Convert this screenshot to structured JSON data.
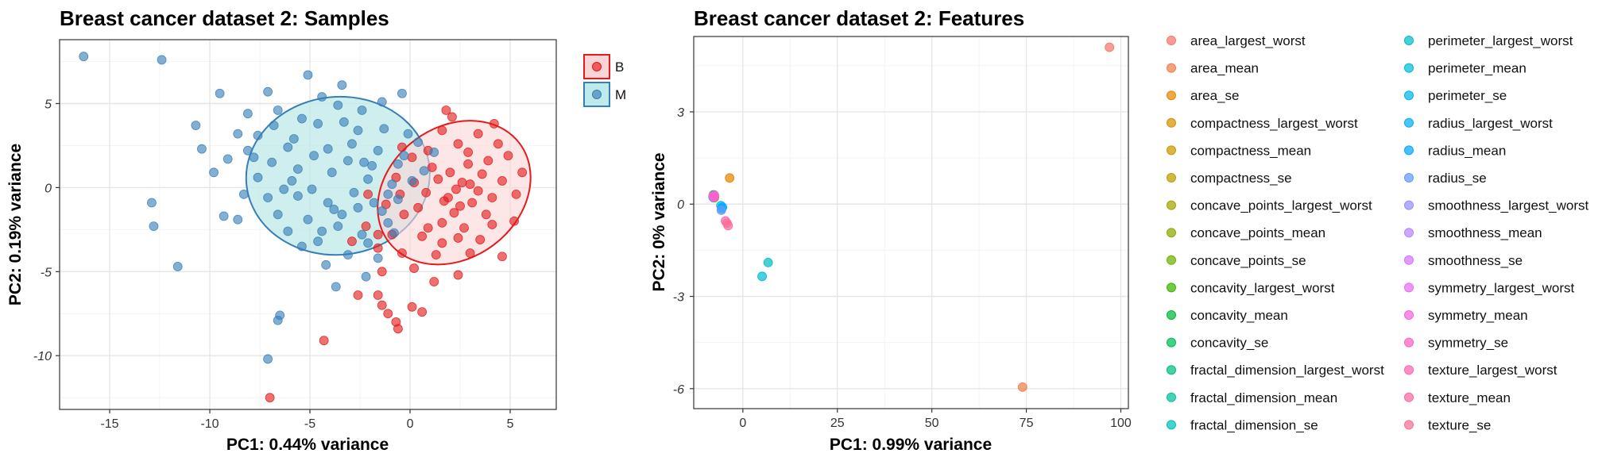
{
  "chart_data": [
    {
      "type": "scatter",
      "title": "Breast cancer dataset 2: Samples",
      "xlabel": "PC1: 0.44% variance",
      "ylabel": "PC2: 0.19% variance",
      "xlim": [
        -17.5,
        7.3
      ],
      "ylim": [
        -13.2,
        8.8
      ],
      "x_ticks": [
        -15,
        -10,
        -5,
        0,
        5
      ],
      "y_ticks": [
        -10,
        -5,
        0,
        5
      ],
      "grid": true,
      "legend_position": "right",
      "series": [
        {
          "name": "B",
          "color": "#e41a1c",
          "ellipse": {
            "cx": 2.2,
            "cy": -0.3,
            "rx": 6.6,
            "ry": 3.9,
            "angle_deg": 37
          },
          "points": [
            [
              1.9,
              -0.6
            ],
            [
              2.6,
              0.3
            ],
            [
              3.1,
              -0.9
            ],
            [
              1.4,
              0.5
            ],
            [
              2.2,
              -1.5
            ],
            [
              3.6,
              0.8
            ],
            [
              0.8,
              -0.3
            ],
            [
              2.9,
              1.4
            ],
            [
              1.6,
              -2.1
            ],
            [
              3.4,
              -0.2
            ],
            [
              2.0,
              0.9
            ],
            [
              4.1,
              -0.6
            ],
            [
              0.4,
              -1.2
            ],
            [
              2.7,
              -2.4
            ],
            [
              1.1,
              1.2
            ],
            [
              3.9,
              1.6
            ],
            [
              2.3,
              -0.1
            ],
            [
              1.7,
              -0.8
            ],
            [
              3.0,
              0.2
            ],
            [
              2.5,
              -1.1
            ],
            [
              0.9,
              -2.4
            ],
            [
              -0.3,
              -1.6
            ],
            [
              -0.9,
              -2.8
            ],
            [
              -1.2,
              -1.0
            ],
            [
              -1.6,
              -3.6
            ],
            [
              -0.7,
              0.6
            ],
            [
              0.2,
              0.3
            ],
            [
              4.6,
              0.4
            ],
            [
              4.9,
              1.9
            ],
            [
              5.3,
              -0.4
            ],
            [
              4.4,
              2.6
            ],
            [
              3.4,
              3.2
            ],
            [
              2.4,
              2.6
            ],
            [
              1.6,
              3.4
            ],
            [
              0.9,
              2.2
            ],
            [
              5.6,
              0.9
            ],
            [
              4.1,
              -2.2
            ],
            [
              3.5,
              -3.1
            ],
            [
              1.3,
              -4.0
            ],
            [
              0.2,
              -4.8
            ],
            [
              -0.4,
              -3.9
            ],
            [
              -1.4,
              -5.0
            ],
            [
              4.6,
              -4.1
            ],
            [
              2.4,
              -5.2
            ],
            [
              1.2,
              -5.6
            ],
            [
              1.6,
              -3.3
            ],
            [
              3.0,
              -3.9
            ],
            [
              -2.2,
              -2.3
            ],
            [
              -2.9,
              -3.2
            ],
            [
              -2.1,
              -0.4
            ],
            [
              -2.6,
              -6.4
            ],
            [
              -1.6,
              -6.4
            ],
            [
              -1.4,
              -7.0
            ],
            [
              -1.1,
              -7.5
            ],
            [
              -0.7,
              -8.0
            ],
            [
              -0.6,
              -8.4
            ],
            [
              0.1,
              -7.1
            ],
            [
              0.6,
              -7.4
            ],
            [
              -4.3,
              -9.1
            ],
            [
              -7.0,
              -12.5
            ],
            [
              5.2,
              -2.0
            ],
            [
              2.1,
              4.2
            ],
            [
              -0.4,
              2.4
            ],
            [
              4.2,
              3.8
            ],
            [
              1.8,
              4.6
            ],
            [
              0.1,
              1.8
            ],
            [
              -1.6,
              -2.8
            ],
            [
              0.6,
              -2.9
            ],
            [
              2.9,
              2.1
            ],
            [
              3.8,
              -1.6
            ],
            [
              2.4,
              -3.0
            ],
            [
              -0.5,
              -0.4
            ]
          ]
        },
        {
          "name": "M",
          "color": "#377eb8",
          "ellipse": {
            "cx": -3.6,
            "cy": 0.7,
            "rx": 7.4,
            "ry": 4.7,
            "angle_deg": 5
          },
          "points": [
            [
              -16.3,
              7.8
            ],
            [
              -12.4,
              7.6
            ],
            [
              -10.7,
              3.7
            ],
            [
              -10.4,
              2.3
            ],
            [
              -9.5,
              5.6
            ],
            [
              -9.1,
              1.7
            ],
            [
              -8.6,
              3.2
            ],
            [
              -8.1,
              2.2
            ],
            [
              -7.1,
              5.7
            ],
            [
              -6.6,
              4.6
            ],
            [
              -6.1,
              2.4
            ],
            [
              -5.6,
              1.1
            ],
            [
              -5.1,
              6.7
            ],
            [
              -4.6,
              3.8
            ],
            [
              -4.1,
              2.3
            ],
            [
              -3.6,
              4.9
            ],
            [
              -3.1,
              1.6
            ],
            [
              -2.6,
              3.4
            ],
            [
              -2.1,
              0.5
            ],
            [
              -1.6,
              2.2
            ],
            [
              -1.1,
              -0.4
            ],
            [
              -0.6,
              1.4
            ],
            [
              -0.1,
              3.2
            ],
            [
              0.4,
              2.7
            ],
            [
              -7.6,
              0.6
            ],
            [
              -7.1,
              -0.6
            ],
            [
              -6.6,
              -1.6
            ],
            [
              -6.1,
              -2.6
            ],
            [
              -5.6,
              -0.5
            ],
            [
              -5.1,
              -1.9
            ],
            [
              -4.6,
              -3.2
            ],
            [
              -4.1,
              -0.9
            ],
            [
              -3.6,
              -2.3
            ],
            [
              -3.1,
              -4.0
            ],
            [
              -2.6,
              -1.2
            ],
            [
              -2.1,
              -3.3
            ],
            [
              -1.6,
              -4.2
            ],
            [
              -1.1,
              -2.1
            ],
            [
              -0.6,
              -0.7
            ],
            [
              -8.6,
              -1.9
            ],
            [
              -9.3,
              -1.7
            ],
            [
              -12.9,
              -0.9
            ],
            [
              -12.8,
              -2.3
            ],
            [
              -11.6,
              -4.7
            ],
            [
              -3.7,
              -5.9
            ],
            [
              -6.5,
              -7.6
            ],
            [
              -6.6,
              -7.9
            ],
            [
              -7.1,
              -10.2
            ],
            [
              -5.4,
              4.1
            ],
            [
              -4.4,
              5.4
            ],
            [
              -3.4,
              6.1
            ],
            [
              -2.4,
              4.6
            ],
            [
              -1.4,
              5.1
            ],
            [
              -0.4,
              5.6
            ],
            [
              -8.1,
              4.4
            ],
            [
              -7.6,
              3.1
            ],
            [
              -6.9,
              1.5
            ],
            [
              -5.9,
              0.4
            ],
            [
              -4.9,
              -0.1
            ],
            [
              -3.9,
              0.9
            ],
            [
              -2.9,
              2.6
            ],
            [
              -1.9,
              1.3
            ],
            [
              -0.9,
              0.2
            ],
            [
              0.1,
              0.4
            ],
            [
              -4.4,
              -2.6
            ],
            [
              -3.4,
              -1.6
            ],
            [
              -2.4,
              -2.8
            ],
            [
              -1.4,
              -1.4
            ],
            [
              -5.4,
              -3.5
            ],
            [
              -6.3,
              -0.1
            ],
            [
              -7.8,
              1.8
            ],
            [
              -5.8,
              2.9
            ],
            [
              -4.8,
              1.9
            ],
            [
              -3.3,
              3.9
            ],
            [
              -2.3,
              1.5
            ],
            [
              -1.3,
              3.5
            ],
            [
              -0.3,
              1.9
            ],
            [
              -6.8,
              3.7
            ],
            [
              -3.8,
              -1.3
            ],
            [
              -2.8,
              -0.3
            ],
            [
              -1.8,
              -0.9
            ],
            [
              -0.8,
              -2.7
            ],
            [
              0.7,
              1.0
            ],
            [
              1.2,
              2.1
            ],
            [
              -9.8,
              0.9
            ],
            [
              -8.3,
              -0.4
            ],
            [
              -4.2,
              -4.6
            ],
            [
              -2.2,
              -5.3
            ]
          ]
        }
      ]
    },
    {
      "type": "scatter",
      "title": "Breast cancer dataset 2: Features",
      "xlabel": "PC1: 0.99% variance",
      "ylabel": "PC2: 0% variance",
      "xlim": [
        -13,
        102
      ],
      "ylim": [
        -6.65,
        5.45
      ],
      "x_ticks": [
        0,
        25,
        50,
        75,
        100
      ],
      "y_ticks": [
        -6,
        -3,
        0,
        3
      ],
      "grid": true,
      "legend_position": "right",
      "legend_columns": 2,
      "features": [
        {
          "name": "area_largest_worst",
          "color": "#F8766D",
          "x": 97.0,
          "y": 5.1
        },
        {
          "name": "area_mean",
          "color": "#F07E4A",
          "x": 74.0,
          "y": -5.95
        },
        {
          "name": "area_se",
          "color": "#E58700",
          "x": -3.5,
          "y": 0.85
        },
        {
          "name": "compactness_largest_worst",
          "color": "#D89000",
          "x": -7.6,
          "y": 0.3
        },
        {
          "name": "compactness_mean",
          "color": "#C99800",
          "x": -7.9,
          "y": 0.25
        },
        {
          "name": "compactness_se",
          "color": "#B79F00",
          "x": -7.6,
          "y": 0.2
        },
        {
          "name": "concave_points_largest_worst",
          "color": "#A3A500",
          "x": -7.8,
          "y": 0.28
        },
        {
          "name": "concave_points_mean",
          "color": "#8BAB00",
          "x": -7.7,
          "y": 0.24
        },
        {
          "name": "concave_points_se",
          "color": "#6BB100",
          "x": -7.5,
          "y": 0.22
        },
        {
          "name": "concavity_largest_worst",
          "color": "#39B600",
          "x": -7.8,
          "y": 0.3
        },
        {
          "name": "concavity_mean",
          "color": "#00BA38",
          "x": -7.6,
          "y": 0.26
        },
        {
          "name": "concavity_se",
          "color": "#00BD5C",
          "x": -7.9,
          "y": 0.23
        },
        {
          "name": "fractal_dimension_largest_worst",
          "color": "#00BF7D",
          "x": -7.7,
          "y": 0.29
        },
        {
          "name": "fractal_dimension_mean",
          "color": "#00C19A",
          "x": -7.5,
          "y": 0.25
        },
        {
          "name": "fractal_dimension_se",
          "color": "#00C0B5",
          "x": -7.8,
          "y": 0.21
        },
        {
          "name": "perimeter_largest_worst",
          "color": "#00BFC4",
          "x": 6.7,
          "y": -1.9
        },
        {
          "name": "perimeter_mean",
          "color": "#00BCD8",
          "x": 5.1,
          "y": -2.35
        },
        {
          "name": "perimeter_se",
          "color": "#00B7E9",
          "x": -5.8,
          "y": -0.05
        },
        {
          "name": "radius_largest_worst",
          "color": "#00B0F6",
          "x": -5.6,
          "y": -0.15
        },
        {
          "name": "radius_mean",
          "color": "#00A9FF",
          "x": -5.4,
          "y": -0.1
        },
        {
          "name": "radius_se",
          "color": "#619CFF",
          "x": -5.7,
          "y": -0.2
        },
        {
          "name": "smoothness_largest_worst",
          "color": "#9590FF",
          "x": -7.6,
          "y": 0.27
        },
        {
          "name": "smoothness_mean",
          "color": "#B983FF",
          "x": -7.8,
          "y": 0.24
        },
        {
          "name": "smoothness_se",
          "color": "#D575FE",
          "x": -7.7,
          "y": 0.22
        },
        {
          "name": "symmetry_largest_worst",
          "color": "#E76BF3",
          "x": -7.5,
          "y": 0.28
        },
        {
          "name": "symmetry_mean",
          "color": "#F564E3",
          "x": -7.9,
          "y": 0.26
        },
        {
          "name": "symmetry_se",
          "color": "#FF61C3",
          "x": -7.6,
          "y": 0.23
        },
        {
          "name": "texture_largest_worst",
          "color": "#FF64B0",
          "x": -4.6,
          "y": -0.55
        },
        {
          "name": "texture_mean",
          "color": "#FF67A4",
          "x": -3.9,
          "y": -0.7
        },
        {
          "name": "texture_se",
          "color": "#FB6F93",
          "x": -4.2,
          "y": -0.62
        }
      ]
    }
  ]
}
